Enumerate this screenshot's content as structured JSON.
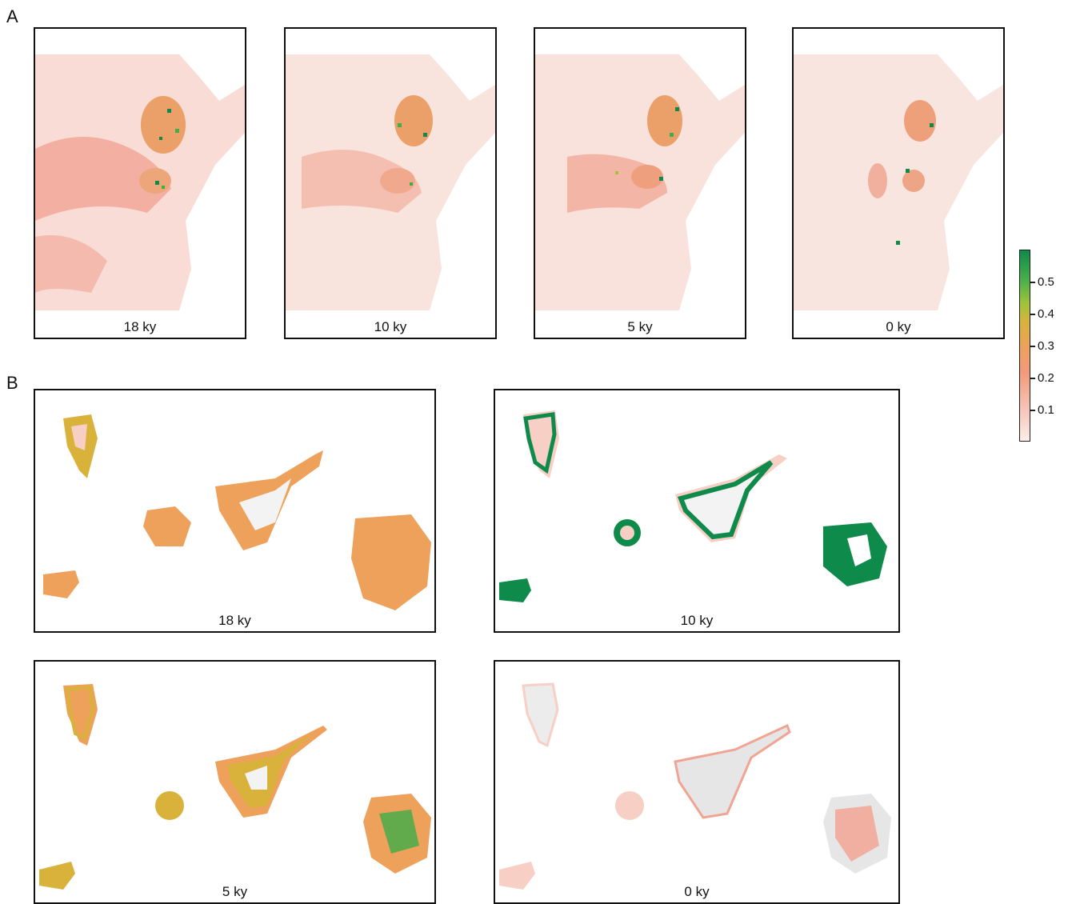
{
  "panels": {
    "a": {
      "letter": "A",
      "maps": [
        {
          "label": "18 ky"
        },
        {
          "label": "10 ky"
        },
        {
          "label": "5 ky"
        },
        {
          "label": "0 ky"
        }
      ]
    },
    "b": {
      "letter": "B",
      "maps": [
        {
          "label": "18 ky"
        },
        {
          "label": "10 ky"
        },
        {
          "label": "5 ky"
        },
        {
          "label": "0 ky"
        }
      ]
    }
  },
  "colorbar": {
    "ticks": [
      "0.5",
      "0.4",
      "0.3",
      "0.2",
      "0.1"
    ],
    "colors": {
      "low": "#fbeeea",
      "mid": "#eda15a",
      "high": "#0e8a4a"
    }
  }
}
